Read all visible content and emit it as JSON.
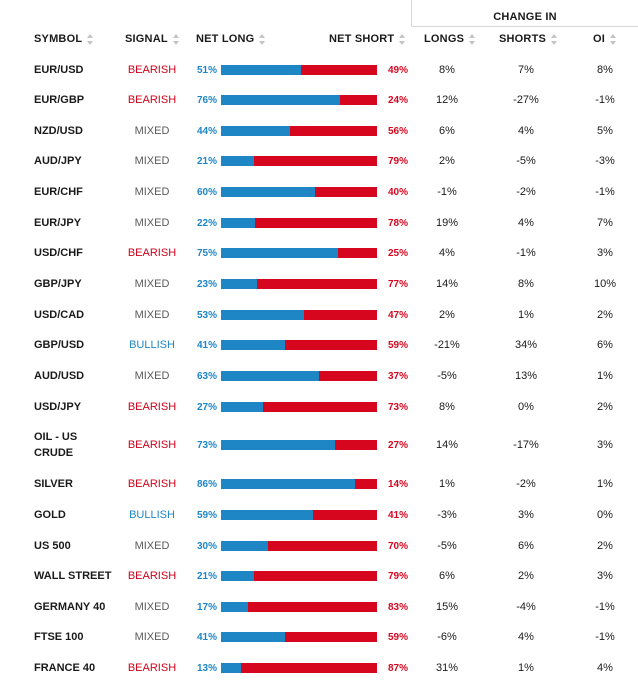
{
  "header": {
    "change_in": "CHANGE IN",
    "symbol": "SYMBOL",
    "signal": "SIGNAL",
    "net_long": "NET LONG",
    "net_short": "NET SHORT",
    "longs": "LONGS",
    "shorts": "SHORTS",
    "oi": "OI"
  },
  "colors": {
    "long": "#1e86c5",
    "short": "#d6061f",
    "bearish": "#d0021b",
    "bullish": "#1e86c5",
    "mixed": "#5a5a5a"
  },
  "rows": [
    {
      "symbol": "EUR/USD",
      "signal": "BEARISH",
      "net_long": "51%",
      "net_short": "49%",
      "longs": "8%",
      "shorts": "7%",
      "oi": "8%",
      "long_pct": 51
    },
    {
      "symbol": "EUR/GBP",
      "signal": "BEARISH",
      "net_long": "76%",
      "net_short": "24%",
      "longs": "12%",
      "shorts": "-27%",
      "oi": "-1%",
      "long_pct": 76
    },
    {
      "symbol": "NZD/USD",
      "signal": "MIXED",
      "net_long": "44%",
      "net_short": "56%",
      "longs": "6%",
      "shorts": "4%",
      "oi": "5%",
      "long_pct": 44
    },
    {
      "symbol": "AUD/JPY",
      "signal": "MIXED",
      "net_long": "21%",
      "net_short": "79%",
      "longs": "2%",
      "shorts": "-5%",
      "oi": "-3%",
      "long_pct": 21
    },
    {
      "symbol": "EUR/CHF",
      "signal": "MIXED",
      "net_long": "60%",
      "net_short": "40%",
      "longs": "-1%",
      "shorts": "-2%",
      "oi": "-1%",
      "long_pct": 60
    },
    {
      "symbol": "EUR/JPY",
      "signal": "MIXED",
      "net_long": "22%",
      "net_short": "78%",
      "longs": "19%",
      "shorts": "4%",
      "oi": "7%",
      "long_pct": 22
    },
    {
      "symbol": "USD/CHF",
      "signal": "BEARISH",
      "net_long": "75%",
      "net_short": "25%",
      "longs": "4%",
      "shorts": "-1%",
      "oi": "3%",
      "long_pct": 75
    },
    {
      "symbol": "GBP/JPY",
      "signal": "MIXED",
      "net_long": "23%",
      "net_short": "77%",
      "longs": "14%",
      "shorts": "8%",
      "oi": "10%",
      "long_pct": 23
    },
    {
      "symbol": "USD/CAD",
      "signal": "MIXED",
      "net_long": "53%",
      "net_short": "47%",
      "longs": "2%",
      "shorts": "1%",
      "oi": "2%",
      "long_pct": 53
    },
    {
      "symbol": "GBP/USD",
      "signal": "BULLISH",
      "net_long": "41%",
      "net_short": "59%",
      "longs": "-21%",
      "shorts": "34%",
      "oi": "6%",
      "long_pct": 41
    },
    {
      "symbol": "AUD/USD",
      "signal": "MIXED",
      "net_long": "63%",
      "net_short": "37%",
      "longs": "-5%",
      "shorts": "13%",
      "oi": "1%",
      "long_pct": 63
    },
    {
      "symbol": "USD/JPY",
      "signal": "BEARISH",
      "net_long": "27%",
      "net_short": "73%",
      "longs": "8%",
      "shorts": "0%",
      "oi": "2%",
      "long_pct": 27
    },
    {
      "symbol": "OIL - US\nCRUDE",
      "signal": "BEARISH",
      "net_long": "73%",
      "net_short": "27%",
      "longs": "14%",
      "shorts": "-17%",
      "oi": "3%",
      "long_pct": 73
    },
    {
      "symbol": "SILVER",
      "signal": "BEARISH",
      "net_long": "86%",
      "net_short": "14%",
      "longs": "1%",
      "shorts": "-2%",
      "oi": "1%",
      "long_pct": 86
    },
    {
      "symbol": "GOLD",
      "signal": "BULLISH",
      "net_long": "59%",
      "net_short": "41%",
      "longs": "-3%",
      "shorts": "3%",
      "oi": "0%",
      "long_pct": 59
    },
    {
      "symbol": "US 500",
      "signal": "MIXED",
      "net_long": "30%",
      "net_short": "70%",
      "longs": "-5%",
      "shorts": "6%",
      "oi": "2%",
      "long_pct": 30
    },
    {
      "symbol": "WALL STREET",
      "signal": "BEARISH",
      "net_long": "21%",
      "net_short": "79%",
      "longs": "6%",
      "shorts": "2%",
      "oi": "3%",
      "long_pct": 21
    },
    {
      "symbol": "GERMANY 40",
      "signal": "MIXED",
      "net_long": "17%",
      "net_short": "83%",
      "longs": "15%",
      "shorts": "-4%",
      "oi": "-1%",
      "long_pct": 17
    },
    {
      "symbol": "FTSE 100",
      "signal": "MIXED",
      "net_long": "41%",
      "net_short": "59%",
      "longs": "-6%",
      "shorts": "4%",
      "oi": "-1%",
      "long_pct": 41
    },
    {
      "symbol": "FRANCE 40",
      "signal": "BEARISH",
      "net_long": "13%",
      "net_short": "87%",
      "longs": "31%",
      "shorts": "1%",
      "oi": "4%",
      "long_pct": 13
    }
  ]
}
